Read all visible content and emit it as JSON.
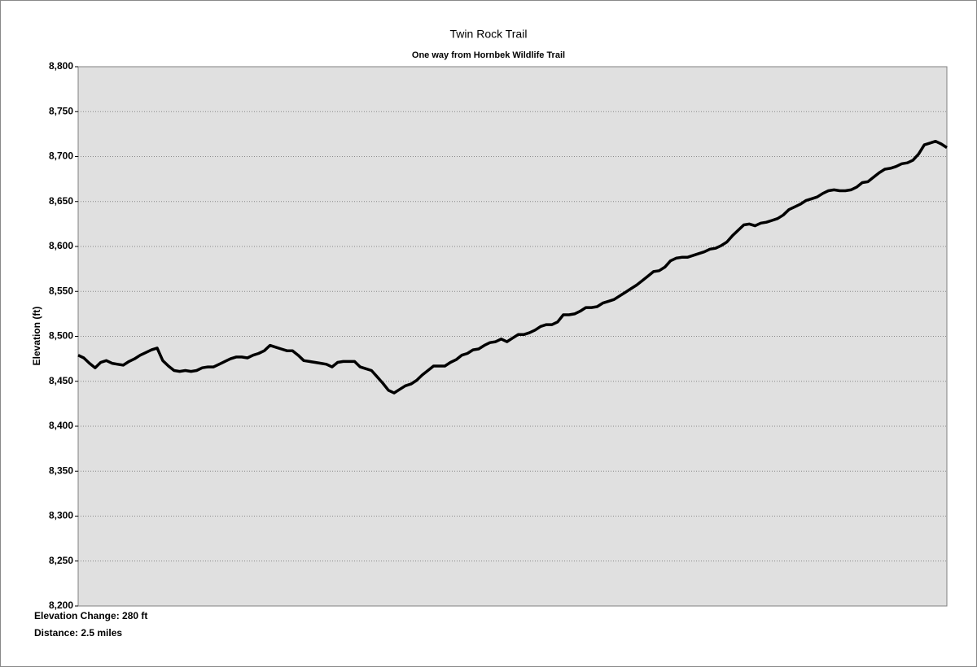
{
  "chart_data": {
    "type": "line",
    "title": "Twin Rock Trail",
    "subtitle": "One way from Hornbek Wildlife Trail",
    "y_label": "Elevation (ft)",
    "annotations": [
      "Elevation Change: 280 ft",
      "Distance: 2.5 miles"
    ],
    "ylim": [
      8200,
      8800
    ],
    "yticks": [
      {
        "value": 8200,
        "label": "8,200"
      },
      {
        "value": 8250,
        "label": "8,250"
      },
      {
        "value": 8300,
        "label": "8,300"
      },
      {
        "value": 8350,
        "label": "8,350"
      },
      {
        "value": 8400,
        "label": "8,400"
      },
      {
        "value": 8450,
        "label": "8,450"
      },
      {
        "value": 8500,
        "label": "8,500"
      },
      {
        "value": 8550,
        "label": "8,550"
      },
      {
        "value": 8600,
        "label": "8,600"
      },
      {
        "value": 8650,
        "label": "8,650"
      },
      {
        "value": 8700,
        "label": "8,700"
      },
      {
        "value": 8750,
        "label": "8,750"
      },
      {
        "value": 8800,
        "label": "8,800"
      }
    ],
    "grid": true,
    "color": "#000000",
    "values": [
      8479,
      8476,
      8470,
      8465,
      8471,
      8473,
      8470,
      8469,
      8468,
      8472,
      8475,
      8479,
      8482,
      8485,
      8487,
      8473,
      8467,
      8462,
      8461,
      8462,
      8461,
      8462,
      8465,
      8466,
      8466,
      8469,
      8472,
      8475,
      8477,
      8477,
      8476,
      8479,
      8481,
      8484,
      8490,
      8488,
      8486,
      8484,
      8484,
      8479,
      8473,
      8472,
      8471,
      8470,
      8469,
      8466,
      8471,
      8472,
      8472,
      8472,
      8466,
      8464,
      8462,
      8455,
      8448,
      8440,
      8437,
      8441,
      8445,
      8447,
      8451,
      8457,
      8462,
      8467,
      8467,
      8467,
      8471,
      8474,
      8479,
      8481,
      8485,
      8486,
      8490,
      8493,
      8494,
      8497,
      8494,
      8498,
      8502,
      8502,
      8504,
      8507,
      8511,
      8513,
      8513,
      8516,
      8524,
      8524,
      8525,
      8528,
      8532,
      8532,
      8533,
      8537,
      8539,
      8541,
      8545,
      8549,
      8553,
      8557,
      8562,
      8567,
      8572,
      8573,
      8577,
      8584,
      8587,
      8588,
      8588,
      8590,
      8592,
      8594,
      8597,
      8598,
      8601,
      8605,
      8612,
      8618,
      8624,
      8625,
      8623,
      8626,
      8627,
      8629,
      8631,
      8635,
      8641,
      8644,
      8647,
      8651,
      8653,
      8655,
      8659,
      8662,
      8663,
      8662,
      8662,
      8663,
      8666,
      8671,
      8672,
      8677,
      8682,
      8686,
      8687,
      8689,
      8692,
      8693,
      8696,
      8703,
      8713,
      8715,
      8717,
      8714,
      8710
    ]
  }
}
